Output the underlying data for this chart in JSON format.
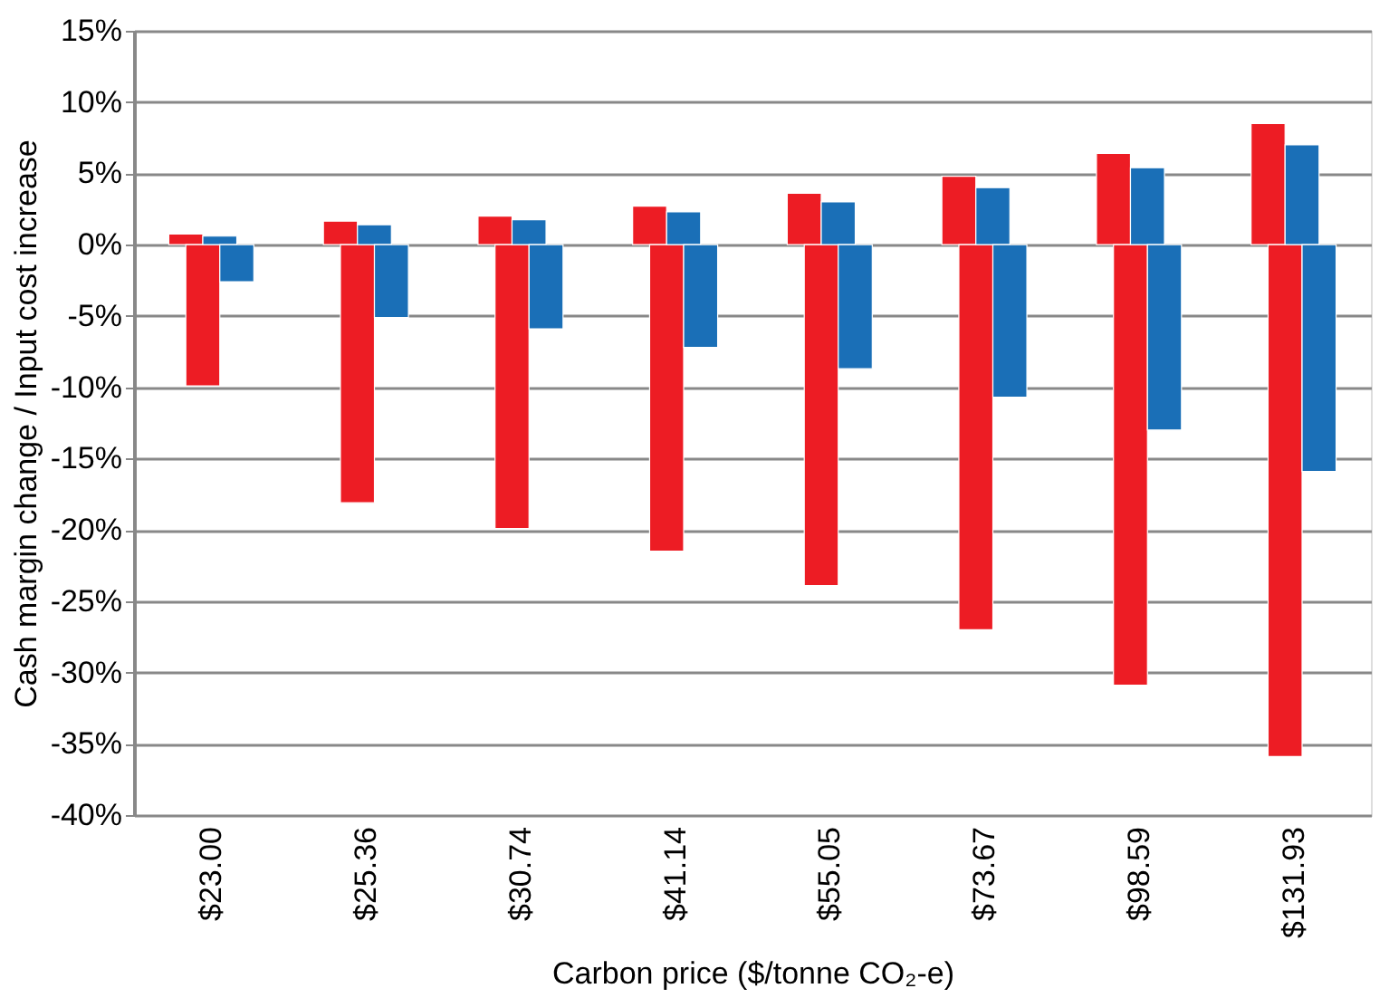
{
  "chart_data": {
    "type": "bar",
    "xlabel": "Carbon price ($/tonne CO₂-e)",
    "ylabel": "Cash margin change / Input cost increase",
    "categories": [
      "$23.00",
      "$25.36",
      "$30.74",
      "$41.14",
      "$55.05",
      "$73.67",
      "$98.59",
      "$131.93"
    ],
    "series": [
      {
        "color": "#ed1c24",
        "values": [
          0.75,
          1.65,
          2.0,
          2.7,
          3.6,
          4.8,
          6.4,
          8.5
        ]
      },
      {
        "color": "#ed1c24",
        "values": [
          -9.9,
          -18.1,
          -19.9,
          -21.5,
          -23.9,
          -27.0,
          -30.9,
          -35.9
        ]
      },
      {
        "color": "#1a6fb7",
        "values": [
          0.6,
          1.4,
          1.75,
          2.3,
          3.0,
          4.0,
          5.4,
          7.0
        ]
      },
      {
        "color": "#1a6fb7",
        "values": [
          -2.6,
          -5.1,
          -5.9,
          -7.2,
          -8.7,
          -10.7,
          -13.0,
          -15.9
        ]
      }
    ],
    "ylim": [
      -40,
      15
    ],
    "yticks": [
      {
        "value": -40,
        "label": "-40%"
      },
      {
        "value": -35,
        "label": "-35%"
      },
      {
        "value": -30,
        "label": "-30%"
      },
      {
        "value": -25,
        "label": "-25%"
      },
      {
        "value": -20,
        "label": "-20%"
      },
      {
        "value": -15,
        "label": "-15%"
      },
      {
        "value": -10,
        "label": "-10%"
      },
      {
        "value": -5,
        "label": "-5%"
      },
      {
        "value": 0,
        "label": "0%"
      },
      {
        "value": 5,
        "label": "5%"
      },
      {
        "value": 10,
        "label": "10%"
      },
      {
        "value": 15,
        "label": "15%"
      }
    ],
    "grid": "y",
    "legend": false
  }
}
